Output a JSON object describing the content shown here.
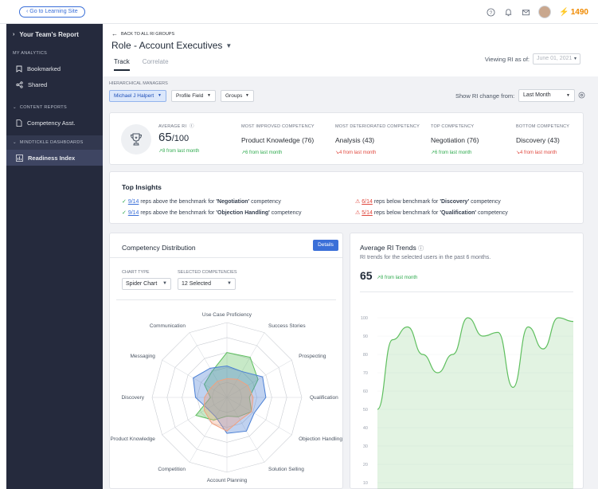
{
  "topbar": {
    "back_label": "Go to Learning Site",
    "points": "1490"
  },
  "sidebar": {
    "team_report": "Your Team's Report",
    "my_analytics": "MY ANALYTICS",
    "bookmarked": "Bookmarked",
    "shared": "Shared",
    "content_reports": "CONTENT REPORTS",
    "competency_asst": "Competency Asst.",
    "dashboards": "MINDTICKLE DASHBOARDS",
    "readiness_index": "Readiness Index"
  },
  "header": {
    "back_link": "BACK TO ALL RI GROUPS",
    "title": "Role - Account Executives",
    "tabs": [
      "Track",
      "Correlate"
    ],
    "viewing_label": "Viewing RI as of:",
    "viewing_date": "June 01, 2021"
  },
  "filters": {
    "hm_label": "HIERARCHICAL MANAGERS",
    "manager": "Michael J Halpert",
    "profile_field": "Profile Field",
    "groups": "Groups",
    "show_change_label": "Show RI change from:",
    "show_change_value": "Last Month"
  },
  "summary": {
    "avg_label": "AVERAGE RI",
    "avg_value": "65",
    "avg_total": "/100",
    "avg_delta": "8 from last month",
    "stats": [
      {
        "label": "MOST IMPROVED COMPETENCY",
        "value": "Product Knowledge (76)",
        "delta": "6 from last month",
        "dir": "up"
      },
      {
        "label": "MOST DETERIORATED COMPETENCY",
        "value": "Analysis (43)",
        "delta": "4 from last month",
        "dir": "down"
      },
      {
        "label": "TOP COMPETENCY",
        "value": "Negotiation (76)",
        "delta": "6 from last month",
        "dir": "up"
      },
      {
        "label": "BOTTOM COMPETENCY",
        "value": "Discovery (43)",
        "delta": "4 from last month",
        "dir": "down"
      }
    ]
  },
  "insights": {
    "title": "Top Insights",
    "items": [
      {
        "count": "9/14",
        "pre": "reps above the benchmark for",
        "comp": "'Negotiation'",
        "post": "competency",
        "kind": "good"
      },
      {
        "count": "9/14",
        "pre": "reps above the benchmark for",
        "comp": "'Objection Handling'",
        "post": "competency",
        "kind": "good"
      },
      {
        "count": "6/14",
        "pre": "reps below benchmark for",
        "comp": "'Discovery'",
        "post": "competency",
        "kind": "bad"
      },
      {
        "count": "5/14",
        "pre": "reps below benchmark for",
        "comp": "'Qualification'",
        "post": "competency",
        "kind": "bad"
      }
    ]
  },
  "distribution": {
    "title": "Competency Distribution",
    "details": "Details",
    "chart_type_label": "CHART TYPE",
    "chart_type": "Spider Chart",
    "selected_label": "SELECTED COMPETENCIES",
    "selected": "12 Selected"
  },
  "trends": {
    "title": "Average RI Trends",
    "subtitle": "RI trends for the selected users in the past 6 months.",
    "value": "65",
    "delta": "8 from last month"
  },
  "chart_data": [
    {
      "type": "radar",
      "axes": [
        "Use Case Proficiency",
        "Success Stories",
        "Prospecting",
        "Qualification",
        "Objection Handling",
        "Solution Selling",
        "Account Planning",
        "Competition",
        "Product Knowledge",
        "Discovery",
        "Messaging",
        "Communication"
      ],
      "rmax": 100,
      "series": [
        {
          "color": "#5fbf5f",
          "values": [
            60,
            62,
            48,
            30,
            38,
            30,
            25,
            35,
            48,
            22,
            35,
            40
          ]
        },
        {
          "color": "#4a7fd4",
          "values": [
            42,
            40,
            55,
            52,
            42,
            52,
            48,
            30,
            30,
            42,
            52,
            45
          ]
        },
        {
          "color": "#f2a17e",
          "values": [
            25,
            28,
            32,
            35,
            38,
            35,
            45,
            40,
            35,
            30,
            25,
            25
          ]
        }
      ]
    },
    {
      "type": "area",
      "y_ticks": [
        100,
        90,
        80,
        70,
        60,
        50,
        40,
        30,
        20,
        10
      ],
      "color": "#5fbf5f",
      "values": [
        50,
        88,
        95,
        80,
        70,
        80,
        100,
        90,
        92,
        62,
        95,
        83,
        100,
        98
      ]
    }
  ]
}
